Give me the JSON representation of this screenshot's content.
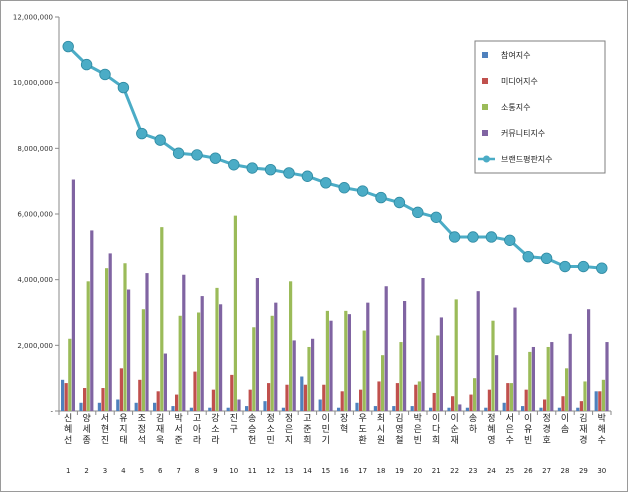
{
  "chart_data": {
    "type": "bar",
    "title": "",
    "xlabel": "",
    "ylabel": "",
    "ylim": [
      0,
      12000000
    ],
    "yticks": [
      "-",
      "2,000,000",
      "4,000,000",
      "6,000,000",
      "8,000,000",
      "10,000,000",
      "12,000,000"
    ],
    "grid": false,
    "legend_position": "top-right",
    "categories": [
      "신혜선",
      "양세종",
      "서현진",
      "유지태",
      "조정석",
      "김재욱",
      "박서준",
      "고아라",
      "강소라",
      "진구",
      "송승헌",
      "정소민",
      "정은지",
      "고준희",
      "이민기",
      "장혁",
      "우도환",
      "최시원",
      "김영철",
      "박은빈",
      "이다희",
      "이순재",
      "송하",
      "정혜영",
      "서은수",
      "이유빈",
      "정경호",
      "이솜",
      "김재경",
      "박해수"
    ],
    "numbers": [
      "1",
      "2",
      "3",
      "4",
      "5",
      "6",
      "7",
      "8",
      "9",
      "10",
      "11",
      "12",
      "13",
      "14",
      "15",
      "16",
      "17",
      "18",
      "19",
      "20",
      "21",
      "22",
      "23",
      "24",
      "25",
      "26",
      "27",
      "28",
      "29",
      "30"
    ],
    "series": [
      {
        "name": "참여지수",
        "color": "#4f81bd",
        "kind": "bar",
        "values": [
          950000,
          250000,
          250000,
          350000,
          250000,
          250000,
          150000,
          100000,
          100000,
          100000,
          150000,
          300000,
          100000,
          1050000,
          350000,
          100000,
          250000,
          150000,
          150000,
          150000,
          100000,
          100000,
          100000,
          100000,
          250000,
          150000,
          100000,
          100000,
          100000,
          600000
        ]
      },
      {
        "name": "미디어지수",
        "color": "#c0504d",
        "kind": "bar",
        "values": [
          850000,
          700000,
          700000,
          1300000,
          950000,
          600000,
          500000,
          1200000,
          650000,
          1100000,
          650000,
          850000,
          800000,
          800000,
          800000,
          600000,
          650000,
          900000,
          850000,
          800000,
          550000,
          450000,
          500000,
          650000,
          850000,
          650000,
          350000,
          450000,
          300000,
          600000
        ]
      },
      {
        "name": "소통지수",
        "color": "#9bbb59",
        "kind": "bar",
        "values": [
          2200000,
          3950000,
          4350000,
          4500000,
          3100000,
          5600000,
          2900000,
          3000000,
          3750000,
          5950000,
          2550000,
          2900000,
          3950000,
          1950000,
          3050000,
          3050000,
          2450000,
          1700000,
          2100000,
          900000,
          2300000,
          3400000,
          1000000,
          2750000,
          850000,
          1800000,
          1950000,
          1300000,
          900000,
          950000
        ]
      },
      {
        "name": "커뮤니티지수",
        "color": "#8064a2",
        "kind": "bar",
        "values": [
          7050000,
          5500000,
          4800000,
          3700000,
          4200000,
          1750000,
          4150000,
          3500000,
          3250000,
          350000,
          4050000,
          3300000,
          2150000,
          2200000,
          2750000,
          2950000,
          3300000,
          3800000,
          3350000,
          4050000,
          2850000,
          200000,
          3650000,
          1700000,
          3150000,
          1950000,
          2100000,
          2350000,
          3100000,
          2100000
        ]
      },
      {
        "name": "브랜드평판지수",
        "color": "#4bacc6",
        "kind": "line",
        "values": [
          11100000,
          10550000,
          10250000,
          9850000,
          8450000,
          8250000,
          7850000,
          7800000,
          7700000,
          7500000,
          7400000,
          7350000,
          7250000,
          7150000,
          6950000,
          6800000,
          6700000,
          6500000,
          6350000,
          6050000,
          5900000,
          5300000,
          5300000,
          5300000,
          5200000,
          4700000,
          4650000,
          4400000,
          4400000,
          4350000
        ]
      }
    ]
  }
}
